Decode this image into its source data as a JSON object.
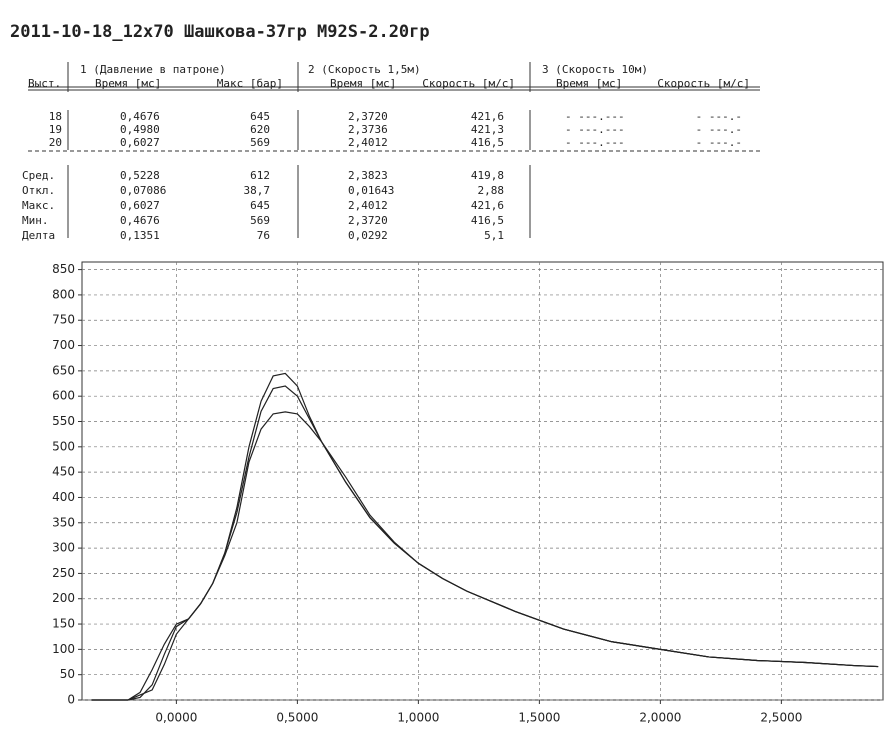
{
  "header": {
    "title": "2011-10-18_12x70 Шашкова-37гр M92S-2.20гр"
  },
  "table": {
    "groups": [
      "1 (Давление в патроне)",
      "2 (Скорость 1,5м)",
      "3 (Скорость 10м)"
    ],
    "columns": [
      "Выст.",
      "Время [мс]",
      "Макс [бар]",
      "Время [мс]",
      "Скорость [м/с]",
      "Время [мс]",
      "Скорость [м/с]"
    ],
    "rows": [
      [
        "18",
        "0,4676",
        "645",
        "2,3720",
        "421,6",
        "- ---.---",
        "- ---.-"
      ],
      [
        "19",
        "0,4980",
        "620",
        "2,3736",
        "421,3",
        "- ---.---",
        "- ---.-"
      ],
      [
        "20",
        "0,6027",
        "569",
        "2,4012",
        "416,5",
        "- ---.---",
        "- ---.-"
      ]
    ],
    "summary": [
      [
        "Сред.",
        "0,5228",
        "612",
        "2,3823",
        "419,8"
      ],
      [
        "Откл.",
        "0,07086",
        "38,7",
        "0,01643",
        "2,88"
      ],
      [
        "Макс.",
        "0,6027",
        "645",
        "2,4012",
        "421,6"
      ],
      [
        "Мин.",
        "0,4676",
        "569",
        "2,3720",
        "416,5"
      ],
      [
        "Делта",
        "0,1351",
        "76",
        "0,0292",
        "5,1"
      ]
    ]
  },
  "chart_data": {
    "type": "line",
    "x": [
      -0.35,
      -0.2,
      -0.15,
      -0.1,
      -0.05,
      0,
      0.05,
      0.1,
      0.15,
      0.2,
      0.25,
      0.3,
      0.35,
      0.4,
      0.45,
      0.5,
      0.55,
      0.6,
      0.7,
      0.8,
      0.9,
      1.0,
      1.1,
      1.2,
      1.4,
      1.6,
      1.8,
      2.0,
      2.2,
      2.4,
      2.6,
      2.8,
      2.9
    ],
    "series": [
      {
        "color": "#222222",
        "values": [
          0,
          0,
          5,
          30,
          90,
          145,
          160,
          190,
          230,
          290,
          380,
          500,
          590,
          640,
          645,
          620,
          560,
          510,
          430,
          360,
          310,
          270,
          240,
          215,
          175,
          140,
          115,
          100,
          85,
          78,
          74,
          68,
          66
        ]
      },
      {
        "color": "#222222",
        "values": [
          0,
          0,
          15,
          60,
          110,
          150,
          160,
          190,
          230,
          290,
          370,
          480,
          570,
          615,
          620,
          600,
          555,
          510,
          430,
          360,
          310,
          270,
          240,
          215,
          175,
          140,
          115,
          100,
          85,
          78,
          74,
          68,
          66
        ]
      },
      {
        "color": "#222222",
        "values": [
          0,
          0,
          10,
          20,
          70,
          130,
          160,
          190,
          230,
          285,
          350,
          470,
          535,
          565,
          569,
          565,
          540,
          510,
          440,
          365,
          312,
          270,
          240,
          215,
          175,
          140,
          115,
          100,
          85,
          78,
          74,
          68,
          66
        ]
      }
    ],
    "xlim": [
      -0.39,
      2.92
    ],
    "ylim": [
      0,
      865
    ],
    "xticks": [
      {
        "value": 0,
        "label": "0,0000"
      },
      {
        "value": 0.5,
        "label": "0,5000"
      },
      {
        "value": 1,
        "label": "1,0000"
      },
      {
        "value": 1.5,
        "label": "1,5000"
      },
      {
        "value": 2,
        "label": "2,0000"
      },
      {
        "value": 2.5,
        "label": "2,5000"
      }
    ],
    "yticks": [
      0,
      50,
      100,
      150,
      200,
      250,
      300,
      350,
      400,
      450,
      500,
      550,
      600,
      650,
      700,
      750,
      800,
      850
    ],
    "grid": true
  }
}
